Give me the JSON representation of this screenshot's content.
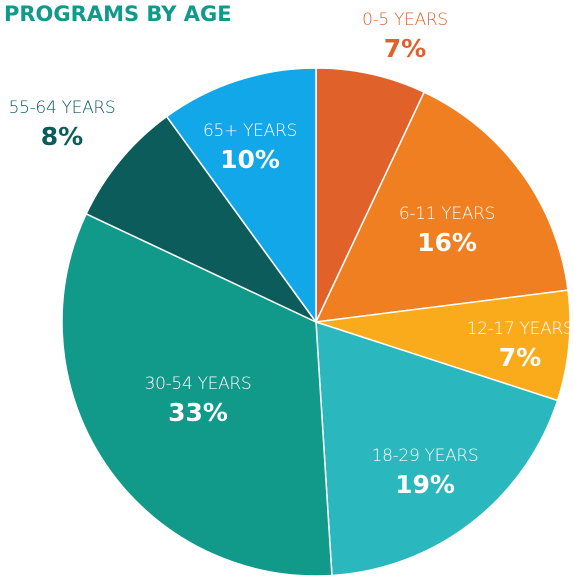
{
  "chart_data": {
    "type": "pie",
    "title": "PROGRAMS BY AGE",
    "categories": [
      "0-5 YEARS",
      "6-11 YEARS",
      "12-17 YEARS",
      "18-29 YEARS",
      "30-54 YEARS",
      "55-64 YEARS",
      "65+ YEARS"
    ],
    "values": [
      7,
      16,
      7,
      19,
      33,
      8,
      10
    ],
    "value_labels": [
      "7%",
      "16%",
      "7%",
      "19%",
      "33%",
      "8%",
      "10%"
    ],
    "colors": [
      "#e0622a",
      "#f07f22",
      "#f9ab1c",
      "#2ab7bd",
      "#11998a",
      "#0b5c5a",
      "#11a7e8"
    ]
  }
}
